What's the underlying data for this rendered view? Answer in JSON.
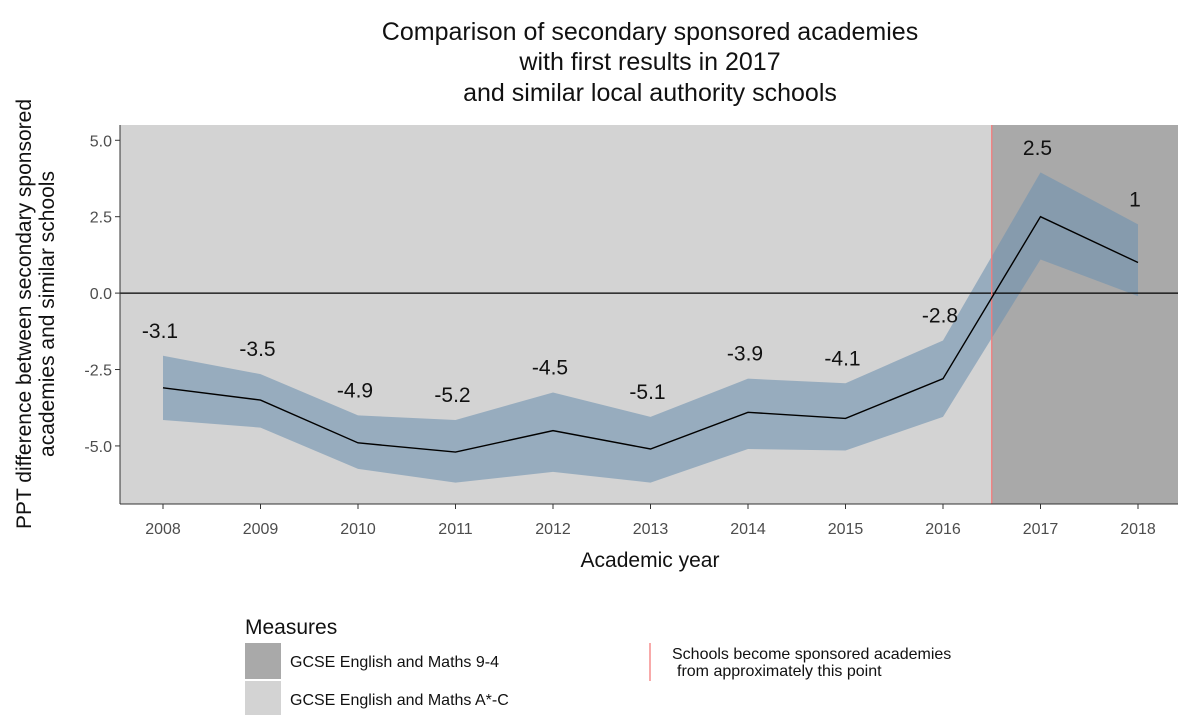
{
  "chart_data": {
    "type": "line",
    "title": [
      "Comparison of secondary sponsored academies",
      "with first results in 2017",
      "and similar local authority schools"
    ],
    "xlabel": "Academic year",
    "ylabel": [
      "PPT difference between secondary sponsored",
      "academies and similar schools"
    ],
    "categories": [
      "2008",
      "2009",
      "2010",
      "2011",
      "2012",
      "2013",
      "2014",
      "2015",
      "2016",
      "2017",
      "2018"
    ],
    "values": [
      -3.1,
      -3.5,
      -4.9,
      -5.2,
      -4.5,
      -5.1,
      -3.9,
      -4.1,
      -2.8,
      2.5,
      1
    ],
    "value_labels": [
      "-3.1",
      "-3.5",
      "-4.9",
      "-5.2",
      "-4.5",
      "-5.1",
      "-3.9",
      "-4.1",
      "-2.8",
      "2.5",
      "1"
    ],
    "ci_upper": [
      -2.05,
      -2.65,
      -4.0,
      -4.15,
      -3.25,
      -4.05,
      -2.8,
      -2.95,
      -1.55,
      3.95,
      2.25
    ],
    "ci_lower": [
      -4.15,
      -4.4,
      -5.75,
      -6.2,
      -5.85,
      -6.2,
      -5.1,
      -5.15,
      -4.05,
      1.1,
      -0.1
    ],
    "ylim": [
      -6.9,
      5.5
    ],
    "y_ticks": [
      5.0,
      2.5,
      0.0,
      -2.5,
      -5.0
    ],
    "y_tick_labels": [
      "5.0",
      "2.5",
      "0.0",
      "-2.5",
      "-5.0"
    ],
    "reference_hline": 0,
    "event_line_between": [
      "2016",
      "2017"
    ],
    "measure_regions": [
      {
        "from_index": 0,
        "to_index": 8.5,
        "measure": "GCSE English and Maths A*-C"
      },
      {
        "from_index": 8.5,
        "to_index": 10,
        "measure": "GCSE English and Maths 9-4"
      }
    ],
    "legend": {
      "title": "Measures",
      "items": [
        {
          "label": "GCSE English and Maths 9-4",
          "color": "#a9a9a9"
        },
        {
          "label": "GCSE English and Maths A*-C",
          "color": "#d3d3d3"
        }
      ],
      "event_label": [
        "Schools become sponsored academies",
        "from approximately this point"
      ],
      "position": "bottom"
    },
    "colors": {
      "region_a_c": "#d3d3d3",
      "region_9_4": "#a9a9a9",
      "ribbon": "#6f93b0",
      "line": "#000000",
      "event_line": "#f47c7c",
      "zero_line": "#000000"
    }
  }
}
